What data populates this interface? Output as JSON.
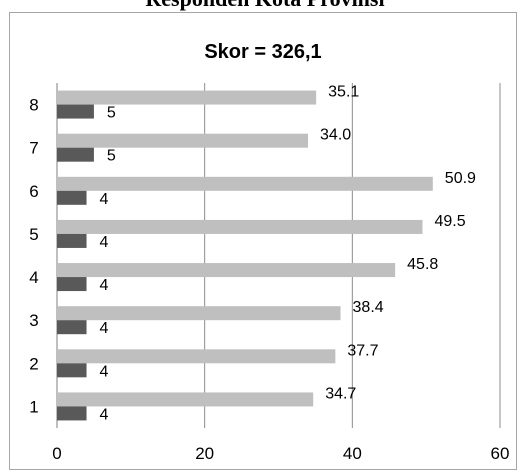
{
  "page": {
    "title": "Responden Kota Provinsi"
  },
  "chart_data": {
    "type": "bar",
    "orientation": "horizontal",
    "title": "Skor = 326,1",
    "xlabel": "",
    "ylabel": "",
    "categories": [
      "1",
      "2",
      "3",
      "4",
      "5",
      "6",
      "7",
      "8"
    ],
    "series": [
      {
        "values": [
          34.7,
          37.7,
          38.4,
          45.8,
          49.5,
          50.9,
          34.0,
          35.1
        ],
        "labels": [
          "34.7",
          "37.7",
          "38.4",
          "45.8",
          "49.5",
          "50.9",
          "34.0",
          "35.1"
        ],
        "color": "#bfbfbf"
      },
      {
        "values": [
          4,
          4,
          4,
          4,
          4,
          4,
          5,
          5
        ],
        "labels": [
          "4",
          "4",
          "4",
          "4",
          "4",
          "4",
          "5",
          "5"
        ],
        "color": "#595959"
      }
    ],
    "xlim": [
      0,
      60
    ],
    "xticks": [
      "0",
      "20",
      "40",
      "60"
    ],
    "grid": "vertical",
    "legend": "none"
  }
}
